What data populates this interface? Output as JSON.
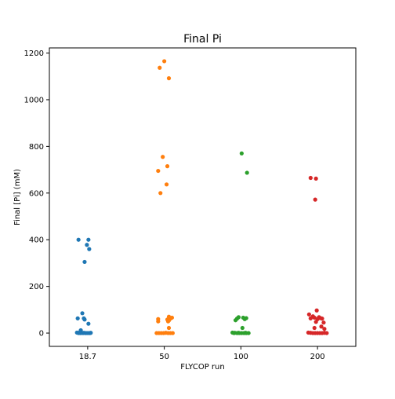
{
  "chart_data": {
    "type": "scatter",
    "title": "Final Pi",
    "xlabel": "FLYCOP run",
    "ylabel": "Final [Pi] (mM)",
    "categories": [
      "18.7",
      "50",
      "100",
      "200"
    ],
    "ylim": [
      -57,
      1222
    ],
    "yticks": [
      0,
      200,
      400,
      600,
      800,
      1000,
      1200
    ],
    "grid": false,
    "legend": "none",
    "colors": [
      "#1f77b4",
      "#ff7f0e",
      "#2ca02c",
      "#d62728"
    ],
    "series": [
      {
        "category": "18.7",
        "points": [
          {
            "jitter": -0.12,
            "y": 400
          },
          {
            "jitter": 0.01,
            "y": 400
          },
          {
            "jitter": -0.01,
            "y": 378
          },
          {
            "jitter": 0.02,
            "y": 360
          },
          {
            "jitter": -0.04,
            "y": 305
          },
          {
            "jitter": -0.07,
            "y": 85
          },
          {
            "jitter": -0.13,
            "y": 63
          },
          {
            "jitter": -0.05,
            "y": 63
          },
          {
            "jitter": -0.04,
            "y": 58
          },
          {
            "jitter": 0.01,
            "y": 40
          },
          {
            "jitter": -0.09,
            "y": 12
          },
          {
            "jitter": -0.14,
            "y": 2
          },
          {
            "jitter": -0.11,
            "y": 2
          },
          {
            "jitter": -0.09,
            "y": 0
          },
          {
            "jitter": -0.06,
            "y": 0
          },
          {
            "jitter": -0.03,
            "y": 0
          },
          {
            "jitter": 0.0,
            "y": 0
          },
          {
            "jitter": 0.02,
            "y": 0
          },
          {
            "jitter": 0.04,
            "y": 1
          },
          {
            "jitter": -0.12,
            "y": 0
          },
          {
            "jitter": -0.08,
            "y": 1
          },
          {
            "jitter": -0.05,
            "y": 1
          },
          {
            "jitter": -0.02,
            "y": 0
          },
          {
            "jitter": 0.03,
            "y": 0
          },
          {
            "jitter": -0.1,
            "y": 0
          }
        ]
      },
      {
        "category": "50",
        "points": [
          {
            "jitter": 0.0,
            "y": 1165
          },
          {
            "jitter": -0.06,
            "y": 1137
          },
          {
            "jitter": 0.06,
            "y": 1092
          },
          {
            "jitter": -0.02,
            "y": 755
          },
          {
            "jitter": 0.04,
            "y": 715
          },
          {
            "jitter": -0.08,
            "y": 695
          },
          {
            "jitter": 0.03,
            "y": 637
          },
          {
            "jitter": -0.05,
            "y": 600
          },
          {
            "jitter": 0.06,
            "y": 70
          },
          {
            "jitter": 0.1,
            "y": 66
          },
          {
            "jitter": 0.08,
            "y": 62
          },
          {
            "jitter": -0.08,
            "y": 60
          },
          {
            "jitter": 0.04,
            "y": 58
          },
          {
            "jitter": 0.06,
            "y": 54
          },
          {
            "jitter": -0.08,
            "y": 50
          },
          {
            "jitter": 0.05,
            "y": 50
          },
          {
            "jitter": 0.06,
            "y": 22
          },
          {
            "jitter": -0.1,
            "y": 0
          },
          {
            "jitter": -0.07,
            "y": 0
          },
          {
            "jitter": -0.04,
            "y": 0
          },
          {
            "jitter": -0.01,
            "y": 0
          },
          {
            "jitter": 0.02,
            "y": 1
          },
          {
            "jitter": 0.05,
            "y": 0
          },
          {
            "jitter": 0.08,
            "y": 0
          },
          {
            "jitter": 0.11,
            "y": 0
          }
        ]
      },
      {
        "category": "100",
        "points": [
          {
            "jitter": 0.01,
            "y": 770
          },
          {
            "jitter": 0.08,
            "y": 687
          },
          {
            "jitter": -0.03,
            "y": 68
          },
          {
            "jitter": 0.03,
            "y": 66
          },
          {
            "jitter": 0.07,
            "y": 64
          },
          {
            "jitter": -0.05,
            "y": 62
          },
          {
            "jitter": 0.05,
            "y": 60
          },
          {
            "jitter": -0.07,
            "y": 55
          },
          {
            "jitter": 0.02,
            "y": 22
          },
          {
            "jitter": -0.11,
            "y": 2
          },
          {
            "jitter": -0.08,
            "y": 1
          },
          {
            "jitter": -0.05,
            "y": 0
          },
          {
            "jitter": -0.02,
            "y": 0
          },
          {
            "jitter": 0.01,
            "y": 0
          },
          {
            "jitter": 0.04,
            "y": 0
          },
          {
            "jitter": 0.07,
            "y": 0
          },
          {
            "jitter": 0.1,
            "y": 0
          },
          {
            "jitter": -0.09,
            "y": 0
          },
          {
            "jitter": -0.03,
            "y": 1
          },
          {
            "jitter": 0.06,
            "y": 1
          }
        ]
      },
      {
        "category": "200",
        "points": [
          {
            "jitter": -0.09,
            "y": 665
          },
          {
            "jitter": -0.02,
            "y": 662
          },
          {
            "jitter": -0.03,
            "y": 572
          },
          {
            "jitter": -0.01,
            "y": 97
          },
          {
            "jitter": -0.11,
            "y": 80
          },
          {
            "jitter": -0.06,
            "y": 72
          },
          {
            "jitter": 0.02,
            "y": 68
          },
          {
            "jitter": -0.04,
            "y": 66
          },
          {
            "jitter": 0.04,
            "y": 64
          },
          {
            "jitter": -0.09,
            "y": 63
          },
          {
            "jitter": 0.06,
            "y": 62
          },
          {
            "jitter": 0.0,
            "y": 60
          },
          {
            "jitter": -0.02,
            "y": 48
          },
          {
            "jitter": 0.08,
            "y": 45
          },
          {
            "jitter": 0.05,
            "y": 28
          },
          {
            "jitter": -0.04,
            "y": 22
          },
          {
            "jitter": 0.09,
            "y": 18
          },
          {
            "jitter": -0.12,
            "y": 2
          },
          {
            "jitter": -0.09,
            "y": 1
          },
          {
            "jitter": -0.06,
            "y": 0
          },
          {
            "jitter": -0.03,
            "y": 0
          },
          {
            "jitter": 0.0,
            "y": 0
          },
          {
            "jitter": 0.03,
            "y": 0
          },
          {
            "jitter": 0.06,
            "y": 0
          },
          {
            "jitter": 0.09,
            "y": 1
          },
          {
            "jitter": 0.12,
            "y": 0
          }
        ]
      }
    ]
  }
}
